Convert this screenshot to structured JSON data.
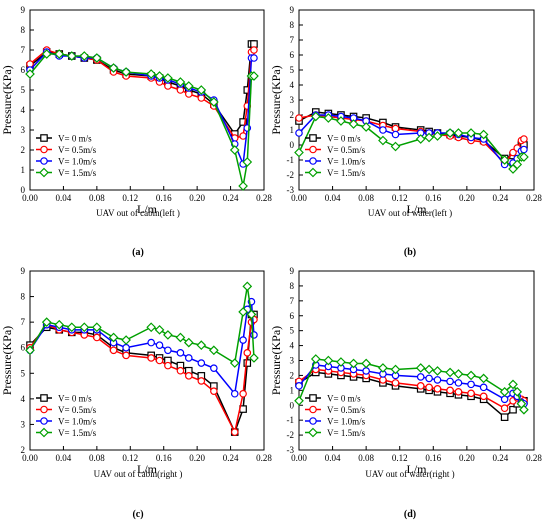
{
  "figure": {
    "panels": [
      {
        "id": "a",
        "subtitle": "UAV out of cabin(left )",
        "caption": "(a)"
      },
      {
        "id": "b",
        "subtitle": "UAV out of water(left )",
        "caption": "(b)"
      },
      {
        "id": "c",
        "subtitle": "UAV out of cabin(right )",
        "caption": "(c)"
      },
      {
        "id": "d",
        "subtitle": "UAV out of water(right )",
        "caption": "(d)"
      }
    ]
  },
  "chart_data": [
    {
      "type": "line",
      "panel": "a",
      "title": "",
      "xlabel": "L/m",
      "ylabel": "Pressure(KPa)",
      "xlim": [
        0,
        0.28
      ],
      "ylim": [
        0,
        9
      ],
      "xticks": [
        "0.00",
        "0.04",
        "0.08",
        "0.12",
        "0.16",
        "0.20",
        "0.24",
        "0.28"
      ],
      "yticks": [
        "0",
        "1",
        "2",
        "3",
        "4",
        "5",
        "6",
        "7",
        "8",
        "9"
      ],
      "legend_position": "bottom-left",
      "grid": false,
      "series": [
        {
          "name": "V= 0 m/s",
          "color": "#000000",
          "marker": "square",
          "x": [
            0.0,
            0.02,
            0.035,
            0.05,
            0.065,
            0.08,
            0.1,
            0.115,
            0.145,
            0.155,
            0.165,
            0.18,
            0.19,
            0.205,
            0.22,
            0.245,
            0.255,
            0.26,
            0.265,
            0.268
          ],
          "y": [
            6.2,
            6.9,
            6.8,
            6.7,
            6.6,
            6.5,
            6.0,
            5.8,
            5.7,
            5.6,
            5.4,
            5.2,
            5.0,
            4.8,
            4.3,
            2.8,
            3.4,
            5.0,
            7.3,
            7.3
          ]
        },
        {
          "name": "V= 0.5m/s",
          "color": "#ff0000",
          "marker": "circle",
          "x": [
            0.0,
            0.02,
            0.035,
            0.05,
            0.065,
            0.08,
            0.1,
            0.115,
            0.145,
            0.155,
            0.165,
            0.18,
            0.19,
            0.205,
            0.22,
            0.245,
            0.255,
            0.26,
            0.265,
            0.268
          ],
          "y": [
            6.3,
            7.0,
            6.8,
            6.7,
            6.6,
            6.5,
            5.9,
            5.7,
            5.6,
            5.4,
            5.2,
            5.0,
            4.8,
            4.6,
            4.2,
            2.6,
            2.7,
            4.2,
            6.9,
            7.0
          ]
        },
        {
          "name": "V= 1.0m/s",
          "color": "#0000ff",
          "marker": "circle",
          "x": [
            0.0,
            0.02,
            0.035,
            0.05,
            0.065,
            0.08,
            0.1,
            0.115,
            0.145,
            0.155,
            0.165,
            0.18,
            0.19,
            0.205,
            0.22,
            0.245,
            0.255,
            0.26,
            0.265,
            0.268
          ],
          "y": [
            6.0,
            6.9,
            6.7,
            6.7,
            6.6,
            6.6,
            6.1,
            5.9,
            5.7,
            5.6,
            5.5,
            5.3,
            5.1,
            4.9,
            4.5,
            2.3,
            1.3,
            3.1,
            6.6,
            6.6
          ]
        },
        {
          "name": "V= 1.5m/s",
          "color": "#00a000",
          "marker": "diamond",
          "x": [
            0.0,
            0.02,
            0.035,
            0.05,
            0.065,
            0.08,
            0.1,
            0.115,
            0.145,
            0.155,
            0.165,
            0.18,
            0.19,
            0.205,
            0.22,
            0.245,
            0.255,
            0.26,
            0.265,
            0.268
          ],
          "y": [
            5.8,
            6.8,
            6.8,
            6.7,
            6.7,
            6.6,
            6.1,
            5.9,
            5.8,
            5.7,
            5.6,
            5.4,
            5.2,
            5.0,
            4.4,
            2.0,
            0.2,
            1.4,
            5.7,
            5.7
          ]
        }
      ]
    },
    {
      "type": "line",
      "panel": "b",
      "title": "",
      "xlabel": "L/m",
      "ylabel": "Pressure(KPa)",
      "xlim": [
        0,
        0.28
      ],
      "ylim": [
        -3,
        9
      ],
      "xticks": [
        "0.00",
        "0.04",
        "0.08",
        "0.12",
        "0.16",
        "0.20",
        "0.24",
        "0.28"
      ],
      "yticks": [
        "-3",
        "-2",
        "-1",
        "0",
        "1",
        "2",
        "3",
        "4",
        "5",
        "6",
        "7",
        "8",
        "9"
      ],
      "legend_position": "bottom-left",
      "grid": false,
      "series": [
        {
          "name": "V= 0 m/s",
          "color": "#000000",
          "marker": "square",
          "x": [
            0.0,
            0.02,
            0.035,
            0.05,
            0.065,
            0.08,
            0.1,
            0.115,
            0.145,
            0.155,
            0.165,
            0.18,
            0.19,
            0.205,
            0.22,
            0.245,
            0.255,
            0.26,
            0.265,
            0.268
          ],
          "y": [
            1.6,
            2.2,
            2.1,
            2.0,
            1.9,
            1.8,
            1.5,
            1.2,
            1.0,
            0.9,
            0.8,
            0.7,
            0.6,
            0.5,
            0.3,
            -0.9,
            -0.7,
            -0.5,
            0.0,
            0.0
          ]
        },
        {
          "name": "V= 0.5m/s",
          "color": "#ff0000",
          "marker": "circle",
          "x": [
            0.0,
            0.02,
            0.035,
            0.05,
            0.065,
            0.08,
            0.1,
            0.115,
            0.145,
            0.155,
            0.165,
            0.18,
            0.19,
            0.205,
            0.22,
            0.245,
            0.255,
            0.26,
            0.265,
            0.268
          ],
          "y": [
            1.8,
            2.0,
            1.9,
            1.8,
            1.7,
            1.6,
            1.3,
            1.1,
            0.9,
            0.8,
            0.7,
            0.6,
            0.5,
            0.3,
            0.2,
            -1.2,
            -0.5,
            -0.2,
            0.3,
            0.4
          ]
        },
        {
          "name": "V= 1.0m/s",
          "color": "#0000ff",
          "marker": "circle",
          "x": [
            0.0,
            0.02,
            0.035,
            0.05,
            0.065,
            0.08,
            0.1,
            0.115,
            0.145,
            0.155,
            0.165,
            0.18,
            0.19,
            0.205,
            0.22,
            0.245,
            0.255,
            0.26,
            0.265,
            0.268
          ],
          "y": [
            0.8,
            2.0,
            2.0,
            1.9,
            1.8,
            1.6,
            1.0,
            0.7,
            0.8,
            0.8,
            0.8,
            0.8,
            0.7,
            0.5,
            0.4,
            -1.3,
            -1.2,
            -0.9,
            -0.4,
            -0.3
          ]
        },
        {
          "name": "V= 1.5m/s",
          "color": "#00a000",
          "marker": "diamond",
          "x": [
            0.0,
            0.02,
            0.035,
            0.05,
            0.065,
            0.08,
            0.1,
            0.115,
            0.145,
            0.155,
            0.165,
            0.18,
            0.19,
            0.205,
            0.22,
            0.245,
            0.255,
            0.26,
            0.265,
            0.268
          ],
          "y": [
            -0.5,
            1.9,
            1.8,
            1.6,
            1.4,
            1.2,
            0.3,
            -0.1,
            0.4,
            0.5,
            0.6,
            0.8,
            0.8,
            0.8,
            0.7,
            -1.0,
            -1.6,
            -1.3,
            -0.8,
            -0.8
          ]
        }
      ]
    },
    {
      "type": "line",
      "panel": "c",
      "title": "",
      "xlabel": "L/m",
      "ylabel": "Pressure(KPa)",
      "xlim": [
        0,
        0.28
      ],
      "ylim": [
        2,
        9
      ],
      "xticks": [
        "0.00",
        "0.04",
        "0.08",
        "0.12",
        "0.16",
        "0.20",
        "0.24",
        "0.28"
      ],
      "yticks": [
        "2",
        "3",
        "4",
        "5",
        "6",
        "7",
        "8",
        "9"
      ],
      "legend_position": "bottom-left",
      "grid": false,
      "series": [
        {
          "name": "V= 0 m/s",
          "color": "#000000",
          "marker": "square",
          "x": [
            0.0,
            0.02,
            0.035,
            0.05,
            0.065,
            0.08,
            0.1,
            0.115,
            0.145,
            0.155,
            0.165,
            0.18,
            0.19,
            0.205,
            0.22,
            0.245,
            0.255,
            0.26,
            0.265,
            0.268
          ],
          "y": [
            6.1,
            6.8,
            6.7,
            6.6,
            6.6,
            6.5,
            6.0,
            5.8,
            5.7,
            5.6,
            5.5,
            5.3,
            5.1,
            4.9,
            4.5,
            2.7,
            3.6,
            5.4,
            7.3,
            7.3
          ]
        },
        {
          "name": "V= 0.5m/s",
          "color": "#ff0000",
          "marker": "circle",
          "x": [
            0.0,
            0.02,
            0.035,
            0.05,
            0.065,
            0.08,
            0.1,
            0.115,
            0.145,
            0.155,
            0.165,
            0.18,
            0.19,
            0.205,
            0.22,
            0.245,
            0.255,
            0.26,
            0.265,
            0.268
          ],
          "y": [
            6.0,
            6.9,
            6.7,
            6.6,
            6.5,
            6.4,
            5.9,
            5.7,
            5.6,
            5.5,
            5.3,
            5.1,
            4.9,
            4.7,
            4.3,
            2.7,
            4.2,
            5.8,
            7.0,
            7.1
          ]
        },
        {
          "name": "V= 1.0m/s",
          "color": "#0000ff",
          "marker": "circle",
          "x": [
            0.0,
            0.02,
            0.035,
            0.05,
            0.065,
            0.08,
            0.1,
            0.115,
            0.145,
            0.155,
            0.165,
            0.18,
            0.19,
            0.205,
            0.22,
            0.245,
            0.255,
            0.26,
            0.265,
            0.268
          ],
          "y": [
            5.9,
            6.9,
            6.8,
            6.7,
            6.7,
            6.7,
            6.2,
            6.0,
            6.2,
            6.1,
            5.9,
            5.8,
            5.6,
            5.4,
            5.2,
            4.2,
            6.3,
            7.5,
            7.8,
            6.5
          ]
        },
        {
          "name": "V= 1.5m/s",
          "color": "#00a000",
          "marker": "diamond",
          "x": [
            0.0,
            0.02,
            0.035,
            0.05,
            0.065,
            0.08,
            0.1,
            0.115,
            0.145,
            0.155,
            0.165,
            0.18,
            0.19,
            0.205,
            0.22,
            0.245,
            0.255,
            0.26,
            0.265,
            0.268
          ],
          "y": [
            5.9,
            7.0,
            6.9,
            6.8,
            6.8,
            6.8,
            6.4,
            6.3,
            6.8,
            6.7,
            6.5,
            6.4,
            6.2,
            6.1,
            5.9,
            5.4,
            7.4,
            8.4,
            7.3,
            5.6
          ]
        }
      ]
    },
    {
      "type": "line",
      "panel": "d",
      "title": "",
      "xlabel": "L/m",
      "ylabel": "Pressure(KPa)",
      "xlim": [
        0,
        0.28
      ],
      "ylim": [
        -3,
        9
      ],
      "xticks": [
        "0.00",
        "0.04",
        "0.08",
        "0.12",
        "0.16",
        "0.20",
        "0.24",
        "0.28"
      ],
      "yticks": [
        "-3",
        "-2",
        "-1",
        "0",
        "1",
        "2",
        "3",
        "4",
        "5",
        "6",
        "7",
        "8",
        "9"
      ],
      "legend_position": "bottom-left",
      "grid": false,
      "series": [
        {
          "name": "V= 0 m/s",
          "color": "#000000",
          "marker": "square",
          "x": [
            0.0,
            0.02,
            0.035,
            0.05,
            0.065,
            0.08,
            0.1,
            0.115,
            0.145,
            0.155,
            0.165,
            0.18,
            0.19,
            0.205,
            0.22,
            0.245,
            0.255,
            0.26,
            0.265,
            0.268
          ],
          "y": [
            1.5,
            2.2,
            2.1,
            2.0,
            1.9,
            1.8,
            1.5,
            1.3,
            1.1,
            1.0,
            0.9,
            0.8,
            0.7,
            0.6,
            0.4,
            -0.8,
            -0.3,
            0.1,
            0.3,
            0.3
          ]
        },
        {
          "name": "V= 0.5m/s",
          "color": "#ff0000",
          "marker": "circle",
          "x": [
            0.0,
            0.02,
            0.035,
            0.05,
            0.065,
            0.08,
            0.1,
            0.115,
            0.145,
            0.155,
            0.165,
            0.18,
            0.19,
            0.205,
            0.22,
            0.245,
            0.255,
            0.26,
            0.265,
            0.268
          ],
          "y": [
            1.6,
            2.4,
            2.3,
            2.2,
            2.1,
            2.0,
            1.7,
            1.5,
            1.3,
            1.2,
            1.1,
            1.0,
            0.9,
            0.8,
            0.6,
            -0.2,
            0.3,
            0.5,
            0.4,
            0.3
          ]
        },
        {
          "name": "V= 1.0m/s",
          "color": "#0000ff",
          "marker": "circle",
          "x": [
            0.0,
            0.02,
            0.035,
            0.05,
            0.065,
            0.08,
            0.1,
            0.115,
            0.145,
            0.155,
            0.165,
            0.18,
            0.19,
            0.205,
            0.22,
            0.245,
            0.255,
            0.26,
            0.265,
            0.268
          ],
          "y": [
            1.3,
            2.7,
            2.6,
            2.5,
            2.4,
            2.3,
            2.1,
            2.0,
            1.9,
            1.8,
            1.7,
            1.6,
            1.5,
            1.4,
            1.2,
            0.4,
            0.8,
            0.6,
            0.2,
            0.1
          ]
        },
        {
          "name": "V= 1.5m/s",
          "color": "#00a000",
          "marker": "diamond",
          "x": [
            0.0,
            0.02,
            0.035,
            0.05,
            0.065,
            0.08,
            0.1,
            0.115,
            0.145,
            0.155,
            0.165,
            0.18,
            0.19,
            0.205,
            0.22,
            0.245,
            0.255,
            0.26,
            0.265,
            0.268
          ],
          "y": [
            0.3,
            3.1,
            3.0,
            2.9,
            2.8,
            2.8,
            2.5,
            2.4,
            2.5,
            2.4,
            2.3,
            2.2,
            2.1,
            2.0,
            1.8,
            0.9,
            1.4,
            0.9,
            0.1,
            -0.3
          ]
        }
      ]
    }
  ]
}
